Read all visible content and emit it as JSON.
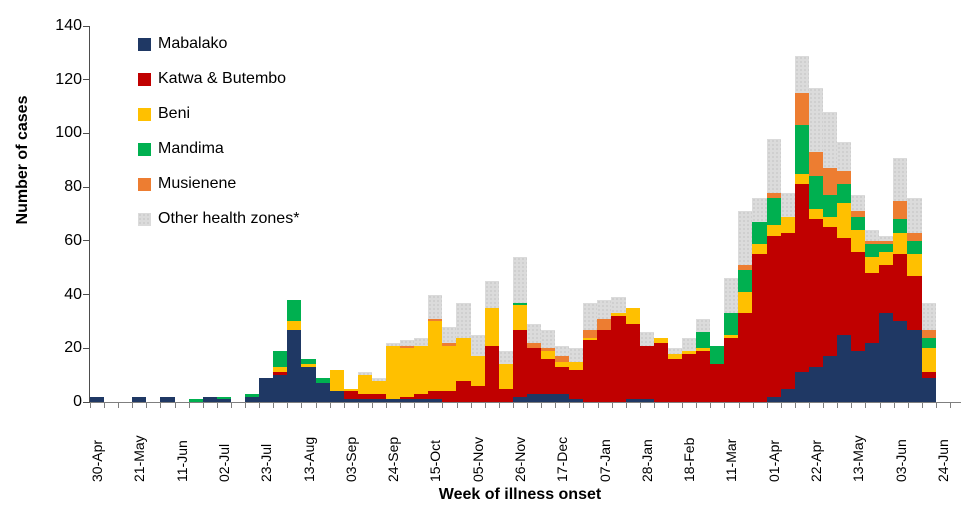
{
  "chart_data": {
    "type": "bar",
    "stacked": true,
    "title": "",
    "xlabel": "Week of illness onset",
    "ylabel": "Number of cases",
    "ylim": [
      0,
      140
    ],
    "yticks": [
      0,
      20,
      40,
      60,
      80,
      100,
      120,
      140
    ],
    "grid": false,
    "legend_position": "top-left-inside",
    "x_label_every": 3,
    "categories": [
      "30-Apr",
      "07-May",
      "14-May",
      "21-May",
      "28-May",
      "04-Jun",
      "11-Jun",
      "18-Jun",
      "25-Jun",
      "02-Jul",
      "09-Jul",
      "16-Jul",
      "23-Jul",
      "30-Jul",
      "06-Aug",
      "13-Aug",
      "20-Aug",
      "27-Aug",
      "03-Sep",
      "10-Sep",
      "17-Sep",
      "24-Sep",
      "01-Oct",
      "08-Oct",
      "15-Oct",
      "22-Oct",
      "29-Oct",
      "05-Nov",
      "12-Nov",
      "19-Nov",
      "26-Nov",
      "03-Dec",
      "10-Dec",
      "17-Dec",
      "24-Dec",
      "31-Dec",
      "07-Jan",
      "14-Jan",
      "21-Jan",
      "28-Jan",
      "04-Feb",
      "11-Feb",
      "18-Feb",
      "25-Feb",
      "04-Mar",
      "11-Mar",
      "18-Mar",
      "25-Mar",
      "01-Apr",
      "08-Apr",
      "15-Apr",
      "22-Apr",
      "29-Apr",
      "06-May",
      "13-May",
      "20-May",
      "27-May",
      "03-Jun",
      "10-Jun",
      "17-Jun",
      "24-Jun"
    ],
    "series": [
      {
        "name": "Mabalako",
        "color": "#1F3864",
        "values": [
          2,
          0,
          0,
          2,
          0,
          2,
          0,
          0,
          2,
          1,
          0,
          2,
          9,
          10,
          27,
          13,
          7,
          4,
          1,
          1,
          1,
          1,
          1,
          1,
          1,
          0,
          0,
          0,
          0,
          0,
          2,
          3,
          3,
          3,
          1,
          0,
          0,
          0,
          1,
          1,
          0,
          0,
          0,
          0,
          0,
          0,
          0,
          0,
          2,
          5,
          11,
          13,
          17,
          25,
          19,
          22,
          33,
          30,
          27,
          9,
          0
        ]
      },
      {
        "name": "Katwa & Butembo",
        "color": "#C00000",
        "values": [
          0,
          0,
          0,
          0,
          0,
          0,
          0,
          0,
          0,
          0,
          0,
          0,
          0,
          1,
          0,
          0,
          0,
          0,
          3,
          2,
          2,
          0,
          1,
          2,
          3,
          4,
          8,
          6,
          21,
          5,
          25,
          17,
          13,
          10,
          11,
          23,
          27,
          32,
          28,
          20,
          22,
          16,
          18,
          19,
          14,
          24,
          33,
          55,
          60,
          58,
          70,
          55,
          48,
          36,
          37,
          26,
          18,
          25,
          20,
          2,
          0
        ]
      },
      {
        "name": "Beni",
        "color": "#FFC000",
        "values": [
          0,
          0,
          0,
          0,
          0,
          0,
          0,
          0,
          0,
          0,
          0,
          0,
          0,
          2,
          3,
          1,
          0,
          8,
          1,
          7,
          5,
          20,
          18,
          18,
          26,
          17,
          16,
          11,
          14,
          9,
          9,
          0,
          3,
          2,
          3,
          1,
          0,
          1,
          6,
          0,
          2,
          2,
          1,
          1,
          0,
          1,
          8,
          4,
          4,
          6,
          4,
          4,
          4,
          13,
          8,
          6,
          5,
          8,
          8,
          9,
          0
        ]
      },
      {
        "name": "Mandima",
        "color": "#00B050",
        "values": [
          0,
          0,
          0,
          0,
          0,
          0,
          0,
          1,
          0,
          1,
          0,
          1,
          0,
          6,
          8,
          2,
          2,
          0,
          0,
          0,
          0,
          0,
          0,
          0,
          0,
          0,
          0,
          0,
          0,
          0,
          1,
          0,
          0,
          0,
          0,
          0,
          0,
          0,
          0,
          0,
          0,
          0,
          0,
          6,
          7,
          8,
          8,
          8,
          10,
          0,
          18,
          12,
          8,
          7,
          5,
          5,
          3,
          5,
          5,
          4,
          0
        ]
      },
      {
        "name": "Musienene",
        "color": "#ED7D31",
        "values": [
          0,
          0,
          0,
          0,
          0,
          0,
          0,
          0,
          0,
          0,
          0,
          0,
          0,
          0,
          0,
          0,
          0,
          0,
          0,
          0,
          0,
          0,
          1,
          0,
          1,
          1,
          0,
          0,
          0,
          0,
          0,
          2,
          1,
          2,
          0,
          3,
          4,
          0,
          0,
          0,
          0,
          0,
          0,
          0,
          0,
          0,
          2,
          0,
          2,
          0,
          12,
          9,
          10,
          5,
          2,
          1,
          1,
          7,
          3,
          3,
          0
        ]
      },
      {
        "name": "Other health zones*",
        "color": "#DBDBDB",
        "pattern": "stipple",
        "values": [
          0,
          0,
          0,
          0,
          0,
          0,
          0,
          0,
          0,
          0,
          0,
          0,
          0,
          0,
          0,
          0,
          0,
          0,
          0,
          1,
          1,
          1,
          2,
          3,
          9,
          6,
          13,
          8,
          10,
          5,
          17,
          7,
          7,
          4,
          5,
          10,
          7,
          6,
          0,
          5,
          0,
          2,
          5,
          5,
          0,
          13,
          20,
          9,
          20,
          9,
          14,
          24,
          21,
          11,
          6,
          4,
          2,
          16,
          13,
          10,
          0
        ]
      }
    ]
  }
}
